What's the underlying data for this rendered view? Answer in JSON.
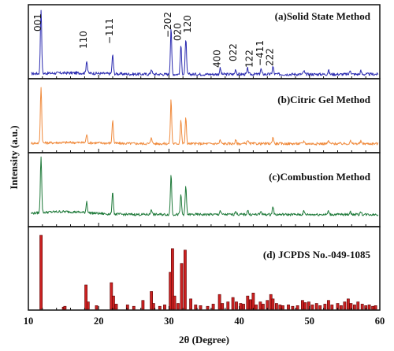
{
  "chart_data": {
    "type": "line",
    "xlabel": "2θ (Degree)",
    "ylabel": "Intensity (a.u.)",
    "xlim": [
      10,
      60
    ],
    "xticks": [
      "10",
      "20",
      "30",
      "40",
      "50",
      "60"
    ],
    "x_grid": false,
    "y_ticks_shown": false,
    "panels": [
      {
        "title": "(a)Solid State Method",
        "kind": "line",
        "color": "#2b2bb0",
        "peaks": [
          [
            11.8,
            1.0
          ],
          [
            18.3,
            0.2
          ],
          [
            22.0,
            0.3
          ],
          [
            27.5,
            0.08
          ],
          [
            30.3,
            0.72
          ],
          [
            31.7,
            0.45
          ],
          [
            32.4,
            0.55
          ],
          [
            37.3,
            0.09
          ],
          [
            39.5,
            0.08
          ],
          [
            41.2,
            0.09
          ],
          [
            43.1,
            0.08
          ],
          [
            44.8,
            0.12
          ],
          [
            49.2,
            0.05
          ],
          [
            52.7,
            0.06
          ],
          [
            55.8,
            0.07
          ],
          [
            57.3,
            0.05
          ]
        ],
        "peak_labels": [
          {
            "x": 11.8,
            "text": "001"
          },
          {
            "x": 18.3,
            "text": "110"
          },
          {
            "x": 22.0,
            "text": "−111"
          },
          {
            "x": 30.3,
            "text": "−202"
          },
          {
            "x": 31.7,
            "text": "020"
          },
          {
            "x": 33.1,
            "text": "120"
          },
          {
            "x": 37.3,
            "text": "400"
          },
          {
            "x": 39.6,
            "text": "022"
          },
          {
            "x": 41.9,
            "text": "122"
          },
          {
            "x": 43.4,
            "text": "−411"
          },
          {
            "x": 44.8,
            "text": "222"
          }
        ]
      },
      {
        "title": "(b)Citric Gel Method",
        "kind": "line",
        "color": "#f08a3c",
        "peaks": [
          [
            11.8,
            1.0
          ],
          [
            18.3,
            0.15
          ],
          [
            22.0,
            0.42
          ],
          [
            27.5,
            0.12
          ],
          [
            30.3,
            0.78
          ],
          [
            31.7,
            0.42
          ],
          [
            32.4,
            0.45
          ],
          [
            37.3,
            0.06
          ],
          [
            39.5,
            0.06
          ],
          [
            41.2,
            0.07
          ],
          [
            44.8,
            0.12
          ],
          [
            49.2,
            0.05
          ],
          [
            52.7,
            0.05
          ],
          [
            55.8,
            0.05
          ],
          [
            57.3,
            0.04
          ]
        ]
      },
      {
        "title": "(c)Combustion Method",
        "kind": "line",
        "color": "#1f7a3a",
        "peaks": [
          [
            11.8,
            1.0
          ],
          [
            18.3,
            0.2
          ],
          [
            22.0,
            0.4
          ],
          [
            27.5,
            0.1
          ],
          [
            30.3,
            0.72
          ],
          [
            31.7,
            0.35
          ],
          [
            32.4,
            0.5
          ],
          [
            37.3,
            0.07
          ],
          [
            39.5,
            0.07
          ],
          [
            41.2,
            0.08
          ],
          [
            43.1,
            0.06
          ],
          [
            44.8,
            0.15
          ],
          [
            49.2,
            0.06
          ],
          [
            52.7,
            0.06
          ],
          [
            55.8,
            0.06
          ],
          [
            57.3,
            0.05
          ]
        ]
      },
      {
        "title": "(d) JCPDS No.-049-1085",
        "kind": "stick",
        "color": "#cc2222",
        "sticks": [
          [
            11.8,
            100
          ],
          [
            15.0,
            3
          ],
          [
            15.2,
            4
          ],
          [
            18.2,
            33
          ],
          [
            18.5,
            10
          ],
          [
            19.7,
            5
          ],
          [
            21.8,
            36
          ],
          [
            22.1,
            18
          ],
          [
            22.5,
            7
          ],
          [
            24.1,
            6
          ],
          [
            25.0,
            4
          ],
          [
            26.3,
            12
          ],
          [
            27.5,
            24
          ],
          [
            27.8,
            8
          ],
          [
            28.7,
            4
          ],
          [
            29.4,
            6
          ],
          [
            30.2,
            50
          ],
          [
            30.5,
            82
          ],
          [
            30.8,
            18
          ],
          [
            31.3,
            8
          ],
          [
            31.8,
            62
          ],
          [
            32.3,
            80
          ],
          [
            33.1,
            14
          ],
          [
            33.8,
            6
          ],
          [
            34.5,
            5
          ],
          [
            35.5,
            4
          ],
          [
            36.3,
            7
          ],
          [
            37.2,
            20
          ],
          [
            37.6,
            8
          ],
          [
            38.4,
            10
          ],
          [
            39.1,
            16
          ],
          [
            39.6,
            10
          ],
          [
            40.2,
            8
          ],
          [
            40.6,
            7
          ],
          [
            41.2,
            18
          ],
          [
            41.6,
            13
          ],
          [
            42.0,
            22
          ],
          [
            42.4,
            6
          ],
          [
            43.0,
            10
          ],
          [
            43.4,
            7
          ],
          [
            44.0,
            12
          ],
          [
            44.5,
            20
          ],
          [
            44.8,
            14
          ],
          [
            45.3,
            8
          ],
          [
            45.8,
            6
          ],
          [
            46.2,
            5
          ],
          [
            47.0,
            6
          ],
          [
            47.6,
            4
          ],
          [
            48.3,
            5
          ],
          [
            49.0,
            12
          ],
          [
            49.4,
            9
          ],
          [
            49.9,
            10
          ],
          [
            50.4,
            6
          ],
          [
            51.0,
            8
          ],
          [
            51.5,
            5
          ],
          [
            52.2,
            7
          ],
          [
            52.7,
            12
          ],
          [
            53.2,
            6
          ],
          [
            54.0,
            8
          ],
          [
            54.5,
            5
          ],
          [
            55.0,
            10
          ],
          [
            55.5,
            14
          ],
          [
            55.9,
            8
          ],
          [
            56.4,
            6
          ],
          [
            56.9,
            10
          ],
          [
            57.5,
            7
          ],
          [
            58.0,
            5
          ],
          [
            58.5,
            6
          ],
          [
            59.0,
            4
          ],
          [
            59.4,
            5
          ]
        ]
      }
    ]
  }
}
